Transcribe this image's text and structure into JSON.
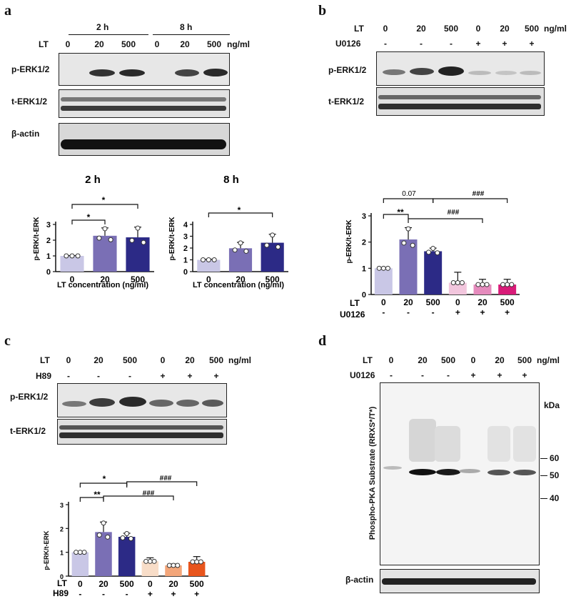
{
  "panels": {
    "a": {
      "letter": "a",
      "header": {
        "lt": "LT",
        "time_2h": "2 h",
        "time_8h": "8 h",
        "unit": "ng/ml",
        "lanes": [
          "0",
          "20",
          "500",
          "0",
          "20",
          "500"
        ]
      },
      "rows": [
        "p-ERK1/2",
        "t-ERK1/2",
        "β-actin"
      ],
      "chart_2h": {
        "title": "2 h",
        "ylabel": "p-ERK/t-ERK",
        "xlabel": "LT concentration (ng/ml)",
        "yticks": [
          "0",
          "1",
          "2",
          "3"
        ],
        "sig": [
          "*",
          "*"
        ]
      },
      "chart_8h": {
        "title": "8 h",
        "ylabel": "p-ERK/t-ERK",
        "xlabel": "LT concentration (ng/ml)",
        "yticks": [
          "0",
          "1",
          "2",
          "3",
          "4"
        ],
        "sig": [
          "*"
        ]
      }
    },
    "b": {
      "letter": "b",
      "header": {
        "lt": "LT",
        "u0126": "U0126",
        "unit": "ng/ml",
        "lanes": [
          "0",
          "20",
          "500",
          "0",
          "20",
          "500"
        ],
        "u_signs": [
          "-",
          "-",
          "-",
          "+",
          "+",
          "+"
        ]
      },
      "rows": [
        "p-ERK1/2",
        "t-ERK1/2"
      ],
      "chart": {
        "ylabel": "p-ERK/t-ERK",
        "yticks": [
          "0",
          "1",
          "2",
          "3"
        ],
        "row1_label": "LT",
        "row2_label": "U0126",
        "lanes": [
          "0",
          "20",
          "500",
          "0",
          "20",
          "500"
        ],
        "signs": [
          "-",
          "-",
          "-",
          "+",
          "+",
          "+"
        ],
        "sig": [
          "**",
          "0.07",
          "###",
          "###"
        ]
      }
    },
    "c": {
      "letter": "c",
      "header": {
        "lt": "LT",
        "h89": "H89",
        "unit": "ng/ml",
        "lanes": [
          "0",
          "20",
          "500",
          "0",
          "20",
          "500"
        ],
        "h_signs": [
          "-",
          "-",
          "-",
          "+",
          "+",
          "+"
        ]
      },
      "rows": [
        "p-ERK1/2",
        "t-ERK1/2"
      ],
      "chart": {
        "ylabel": "p-ERK/t-ERK",
        "yticks": [
          "0",
          "1",
          "2",
          "3"
        ],
        "row1_label": "LT",
        "row2_label": "H89",
        "lanes": [
          "0",
          "20",
          "500",
          "0",
          "20",
          "500"
        ],
        "signs": [
          "-",
          "-",
          "-",
          "+",
          "+",
          "+"
        ],
        "sig": [
          "*",
          "**",
          "###",
          "###"
        ]
      }
    },
    "d": {
      "letter": "d",
      "header": {
        "lt": "LT",
        "u0126": "U0126",
        "unit": "ng/ml",
        "lanes": [
          "0",
          "20",
          "500",
          "0",
          "20",
          "500"
        ],
        "u_signs": [
          "-",
          "-",
          "-",
          "+",
          "+",
          "+"
        ]
      },
      "vertical_label": "Phospho-PKA Substrate (RRXS*/T*)",
      "kda": "kDa",
      "markers": [
        "60",
        "50",
        "40"
      ],
      "actin": "β-actin"
    }
  },
  "chart_data": [
    {
      "type": "bar",
      "panel": "a-2h",
      "categories": [
        "0",
        "20",
        "500"
      ],
      "values": [
        1.0,
        2.28,
        2.18
      ],
      "errors": [
        0.02,
        0.5,
        0.65
      ],
      "ylim": [
        0,
        3
      ],
      "title": "2 h",
      "xlabel": "LT concentration (ng/ml)",
      "ylabel": "p-ERK/t-ERK",
      "colors": [
        "#c9c7e6",
        "#7a6fb5",
        "#2c2a86"
      ]
    },
    {
      "type": "bar",
      "panel": "a-8h",
      "categories": [
        "0",
        "20",
        "500"
      ],
      "values": [
        1.0,
        1.98,
        2.45
      ],
      "errors": [
        0.05,
        0.5,
        0.72
      ],
      "ylim": [
        0,
        4
      ],
      "title": "8 h",
      "xlabel": "LT concentration (ng/ml)",
      "ylabel": "p-ERK/t-ERK",
      "colors": [
        "#c9c7e6",
        "#7a6fb5",
        "#2c2a86"
      ]
    },
    {
      "type": "bar",
      "panel": "b",
      "categories": [
        "0",
        "20",
        "500",
        "0",
        "20",
        "500"
      ],
      "values": [
        1.0,
        2.1,
        1.65,
        0.45,
        0.38,
        0.38
      ],
      "errors": [
        0.02,
        0.45,
        0.12,
        0.4,
        0.2,
        0.2
      ],
      "ylim": [
        0,
        3
      ],
      "ylabel": "p-ERK/t-ERK",
      "colors": [
        "#c9c7e6",
        "#7a6fb5",
        "#2c2a86",
        "#f2c6dd",
        "#e58bbd",
        "#d81b78"
      ]
    },
    {
      "type": "bar",
      "panel": "c",
      "categories": [
        "0",
        "20",
        "500",
        "0",
        "20",
        "500"
      ],
      "values": [
        1.0,
        1.85,
        1.65,
        0.62,
        0.45,
        0.6
      ],
      "errors": [
        0.02,
        0.42,
        0.15,
        0.15,
        0.06,
        0.22
      ],
      "ylim": [
        0,
        3
      ],
      "ylabel": "p-ERK/t-ERK",
      "colors": [
        "#c9c7e6",
        "#7a6fb5",
        "#2c2a86",
        "#f8ddc8",
        "#f3a67a",
        "#e8551d"
      ]
    }
  ]
}
